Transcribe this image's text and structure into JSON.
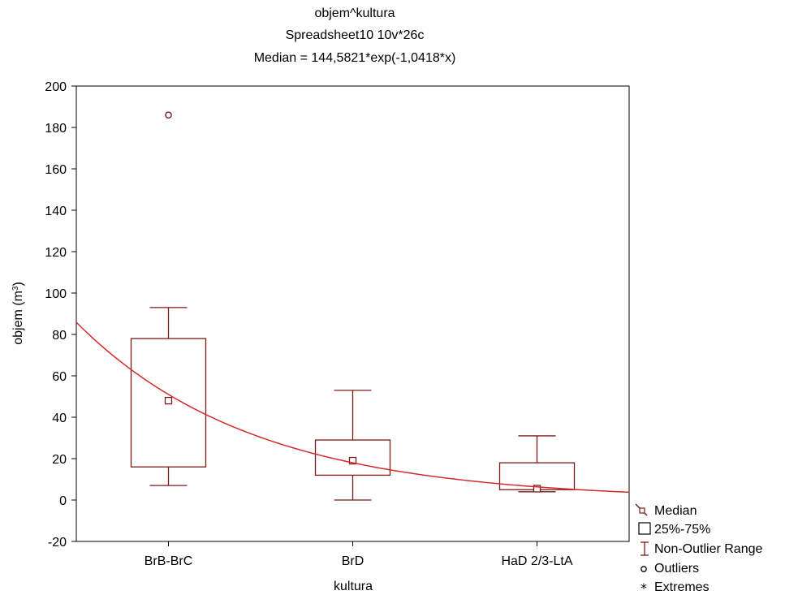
{
  "chart_data": {
    "type": "box",
    "title_lines": [
      "objem^kultura",
      "Spreadsheet10 10v*26c",
      "Median = 144,5821*exp(-1,0418*x)"
    ],
    "xlabel": "kultura",
    "ylabel": "objem (m",
    "ylabel_sup": "3",
    "ylabel_close": ")",
    "ylim": [
      -20,
      200
    ],
    "yticks": [
      -20,
      0,
      20,
      40,
      60,
      80,
      100,
      120,
      140,
      160,
      180,
      200
    ],
    "grid": false,
    "categories": [
      "BrB-BrC",
      "BrD",
      "HaD 2/3-LtA"
    ],
    "boxes": [
      {
        "category": "BrB-BrC",
        "whisker_low": 7,
        "q1": 16,
        "median": 48,
        "q3": 78,
        "whisker_high": 93
      },
      {
        "category": "BrD",
        "whisker_low": 0,
        "q1": 12,
        "median": 19,
        "q3": 29,
        "whisker_high": 53
      },
      {
        "category": "HaD 2/3-LtA",
        "whisker_low": 4,
        "q1": 5,
        "median": 5.5,
        "q3": 18,
        "whisker_high": 31
      }
    ],
    "outliers": [
      {
        "category": "BrB-BrC",
        "value": 186
      }
    ],
    "extremes": [],
    "fit": {
      "type": "exponential",
      "a": 144.5821,
      "b": -1.0418,
      "x_range": [
        0.5,
        3.5
      ]
    },
    "legend": {
      "position": "bottom-right",
      "entries": [
        "Median",
        "25%-75%",
        "Non-Outlier Range",
        "Outliers",
        "Extremes"
      ]
    },
    "colors": {
      "box": "#7a1a1a",
      "fit": "#d42a2a",
      "axis": "#000000"
    }
  }
}
